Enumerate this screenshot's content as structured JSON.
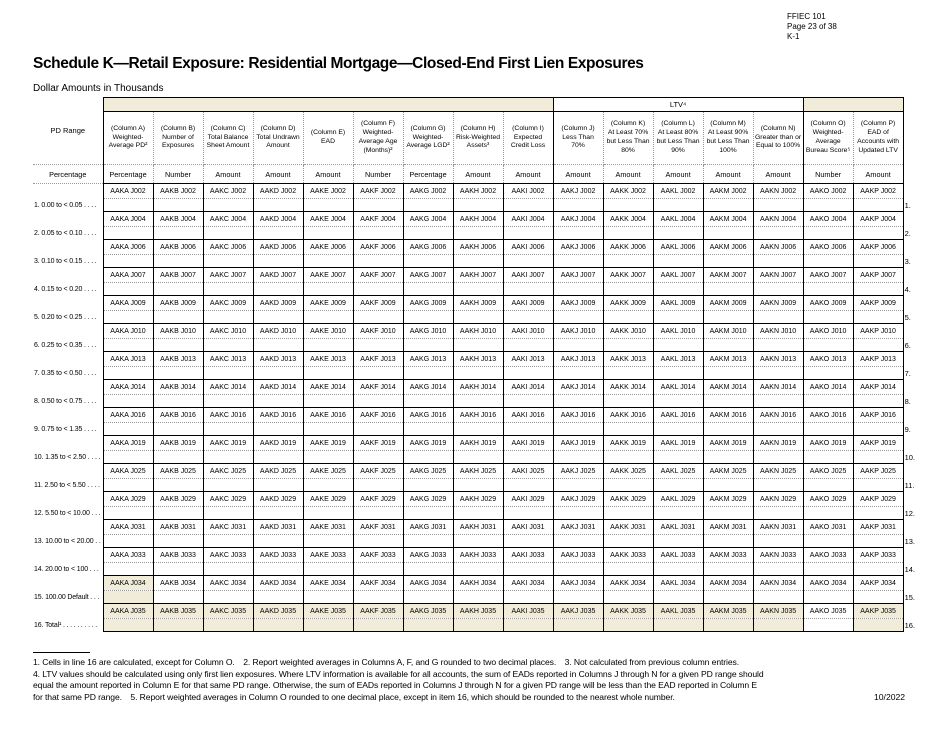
{
  "page_header": {
    "form_number": "FFIEC 101",
    "page_label": "Page 23 of 38",
    "schedule_page": "K-1"
  },
  "title": "Schedule K—Retail Exposure: Residential Mortgage—Closed-End First Lien Exposures",
  "subtitle": "Dollar Amounts in Thousands",
  "colors": {
    "shade_beige": "#f1ecda",
    "grid_black": "#000000",
    "dotted_gray": "#999999"
  },
  "table": {
    "pd_range_header": "PD Range",
    "pd_range_unit": "Percentage",
    "ltv_band_label": "LTV⁴",
    "columns": [
      {
        "tag": "(Column A)",
        "label": "Weighted-Average PD²",
        "unit": "Percentage",
        "prefix": "AAKA"
      },
      {
        "tag": "(Column B)",
        "label": "Number of Exposures",
        "unit": "Number",
        "prefix": "AAKB"
      },
      {
        "tag": "(Column C)",
        "label": "Total Balance Sheet Amount",
        "unit": "Amount",
        "prefix": "AAKC"
      },
      {
        "tag": "(Column D)",
        "label": "Total Undrawn Amount",
        "unit": "Amount",
        "prefix": "AAKD"
      },
      {
        "tag": "(Column E)",
        "label": "EAD",
        "unit": "Amount",
        "prefix": "AAKE"
      },
      {
        "tag": "(Column F)",
        "label": "Weighted-Average Age (Months)²",
        "unit": "Number",
        "prefix": "AAKF"
      },
      {
        "tag": "(Column G)",
        "label": "Weighted-Average LGD²",
        "unit": "Percentage",
        "prefix": "AAKG"
      },
      {
        "tag": "(Column H)",
        "label": "Risk-Weighted Assets³",
        "unit": "Amount",
        "prefix": "AAKH"
      },
      {
        "tag": "(Column I)",
        "label": "Expected Credit Loss",
        "unit": "Amount",
        "prefix": "AAKI"
      },
      {
        "tag": "(Column J)",
        "label": "Less Than 70%",
        "unit": "Amount",
        "prefix": "AAKJ"
      },
      {
        "tag": "(Column K)",
        "label": "At Least 70% but Less Than 80%",
        "unit": "Amount",
        "prefix": "AAKK"
      },
      {
        "tag": "(Column L)",
        "label": "At Least 80% but Less Than 90%",
        "unit": "Amount",
        "prefix": "AAKL"
      },
      {
        "tag": "(Column M)",
        "label": "At Least 90% but Less Than 100%",
        "unit": "Amount",
        "prefix": "AAKM"
      },
      {
        "tag": "(Column N)",
        "label": "Greater than or Equal to 100%",
        "unit": "Amount",
        "prefix": "AAKN"
      },
      {
        "tag": "(Column O)",
        "label": "Weighted-Average Bureau Score⁵",
        "unit": "Number",
        "prefix": "AAKO"
      },
      {
        "tag": "(Column P)",
        "label": "EAD of Accounts with Updated LTV",
        "unit": "Amount",
        "prefix": "AAKP"
      }
    ],
    "rows": [
      {
        "num": "1.",
        "label": "1. 0.00 to < 0.05 . . . .",
        "code": "J002",
        "shade": "none"
      },
      {
        "num": "2.",
        "label": "2. 0.05 to < 0.10 . . . .",
        "code": "J004",
        "shade": "none"
      },
      {
        "num": "3.",
        "label": "3. 0.10 to < 0.15 . . . .",
        "code": "J006",
        "shade": "none"
      },
      {
        "num": "4.",
        "label": "4. 0.15 to < 0.20 . . . .",
        "code": "J007",
        "shade": "none"
      },
      {
        "num": "5.",
        "label": "5. 0.20 to < 0.25 . . . .",
        "code": "J009",
        "shade": "none"
      },
      {
        "num": "6.",
        "label": "6. 0.25 to < 0.35 . . . .",
        "code": "J010",
        "shade": "none"
      },
      {
        "num": "7.",
        "label": "7. 0.35 to < 0.50 . . . .",
        "code": "J013",
        "shade": "none"
      },
      {
        "num": "8.",
        "label": "8. 0.50 to < 0.75 . . . .",
        "code": "J014",
        "shade": "none"
      },
      {
        "num": "9.",
        "label": "9. 0.75 to < 1.35 . . . .",
        "code": "J016",
        "shade": "none"
      },
      {
        "num": "10.",
        "label": "10. 1.35 to < 2.50 . . . .",
        "code": "J019",
        "shade": "none"
      },
      {
        "num": "11.",
        "label": "11. 2.50 to < 5.50 . . . .",
        "code": "J025",
        "shade": "none"
      },
      {
        "num": "12.",
        "label": "12. 5.50 to < 10.00 . . .",
        "code": "J029",
        "shade": "none"
      },
      {
        "num": "13.",
        "label": "13. 10.00 to < 20.00 . .",
        "code": "J031",
        "shade": "none"
      },
      {
        "num": "14.",
        "label": "14. 20.00 to < 100 . . .",
        "code": "J033",
        "shade": "none"
      },
      {
        "num": "15.",
        "label": "15. 100.00 Default . . .",
        "code": "J034",
        "shade": "colA"
      },
      {
        "num": "16.",
        "label": "16. Total¹ . . . . . . . . . .",
        "code": "J035",
        "shade": "all-except-O"
      }
    ]
  },
  "footnotes": [
    "1. Cells in line 16 are calculated, except for Column O. 2. Report weighted averages in Columns A, F, and G rounded to two decimal places. 3. Not calculated from previous column entries.",
    "4. LTV values should be calculated using only first lien exposures. Where LTV information is available for all accounts, the sum of EADs reported in Columns J through N for a given PD range should",
    "equal the amount reported in Column E for that same PD range. Otherwise, the sum of EADs reported in Columns J through N for a given PD range will be less than the EAD reported in Column E",
    "for that same PD range. 5. Report weighted averages in Column O rounded to one decimal place, except in item 16, which should be rounded to the nearest whole number."
  ],
  "date_label": "10/2022"
}
